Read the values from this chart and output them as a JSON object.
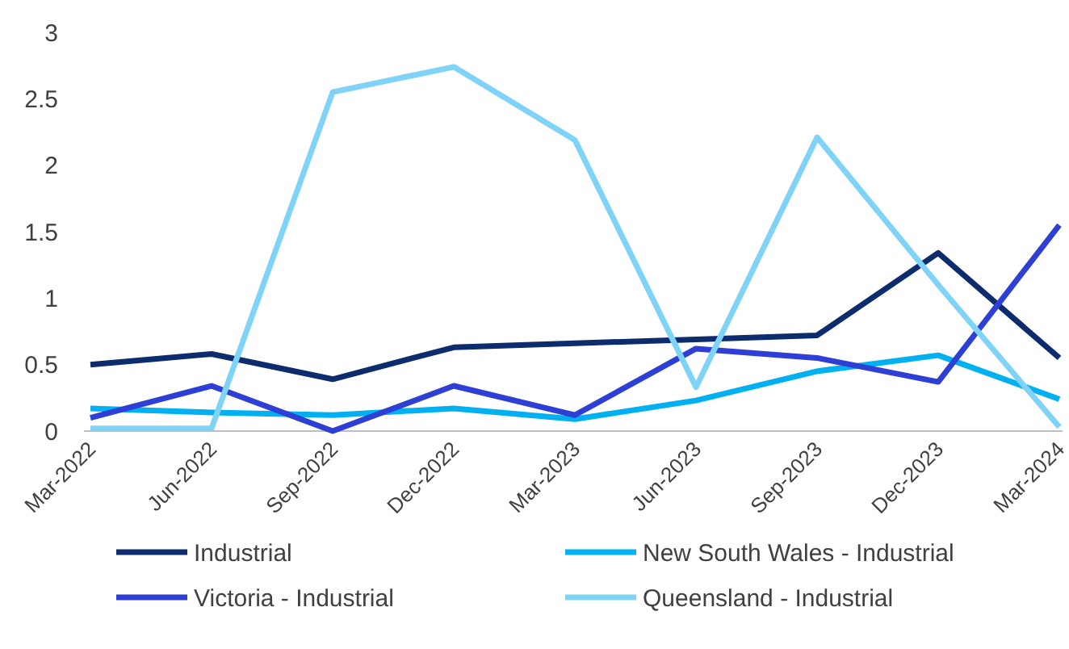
{
  "chart_data": {
    "type": "line",
    "categories": [
      "Mar-2022",
      "Jun-2022",
      "Sep-2022",
      "Dec-2022",
      "Mar-2023",
      "Jun-2023",
      "Sep-2023",
      "Dec-2023",
      "Mar-2024"
    ],
    "series": [
      {
        "name": "Industrial",
        "color": "#0c2c6e",
        "values": [
          0.5,
          0.58,
          0.39,
          0.63,
          0.66,
          0.69,
          0.72,
          1.34,
          0.55
        ]
      },
      {
        "name": "New South Wales - Industrial",
        "color": "#00b0f0",
        "values": [
          0.17,
          0.14,
          0.12,
          0.17,
          0.09,
          0.23,
          0.45,
          0.57,
          0.24
        ]
      },
      {
        "name": "Victoria - Industrial",
        "color": "#2e3fd6",
        "values": [
          0.1,
          0.34,
          0.0,
          0.34,
          0.12,
          0.62,
          0.55,
          0.37,
          1.55
        ]
      },
      {
        "name": "Queensland - Industrial",
        "color": "#7fd3f7",
        "values": [
          0.02,
          0.02,
          2.55,
          2.74,
          2.19,
          0.33,
          2.21,
          1.1,
          0.03
        ]
      }
    ],
    "ylim": [
      0,
      3
    ],
    "yticks": [
      0,
      0.5,
      1,
      1.5,
      2,
      2.5,
      3
    ],
    "grid": false,
    "legend": "bottom",
    "marker": "none",
    "line_style": "solid"
  }
}
